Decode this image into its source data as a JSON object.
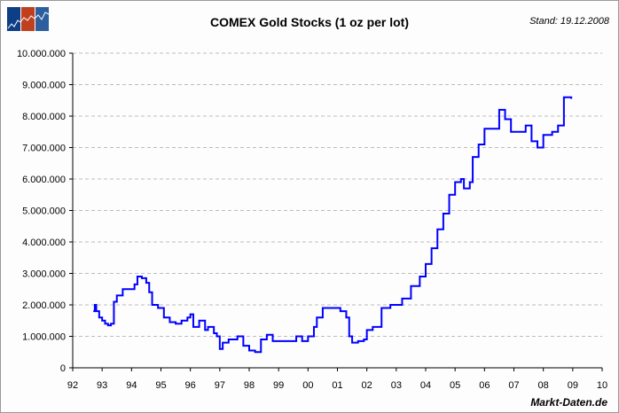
{
  "header": {
    "stand": "Stand: 19.12.2008",
    "brand": "Markt-Daten.de",
    "logo_icon": "markt-daten-logo"
  },
  "chart_data": {
    "type": "line",
    "title": "COMEX Gold Stocks (1 oz per lot)",
    "xlabel": "",
    "ylabel": "",
    "xlim": [
      1992,
      2010
    ],
    "ylim": [
      0,
      10000000
    ],
    "grid": "horizontal dashed",
    "line_color": "#0000ff",
    "x_tick_labels": [
      "92",
      "93",
      "94",
      "95",
      "96",
      "97",
      "98",
      "99",
      "00",
      "01",
      "02",
      "03",
      "04",
      "05",
      "06",
      "07",
      "08",
      "09",
      "10"
    ],
    "y_tick_labels": [
      "0",
      "1.000.000",
      "2.000.000",
      "3.000.000",
      "4.000.000",
      "5.000.000",
      "6.000.000",
      "7.000.000",
      "8.000.000",
      "9.000.000",
      "10.000.000"
    ],
    "series": [
      {
        "x": [
          1992.7,
          1992.75,
          1992.8,
          1992.9,
          1993.0,
          1993.1,
          1993.2,
          1993.3,
          1993.4,
          1993.5,
          1993.7,
          1993.9,
          1994.1,
          1994.2,
          1994.35,
          1994.5,
          1994.6,
          1994.7,
          1994.9,
          1995.1,
          1995.3,
          1995.5,
          1995.7,
          1995.9,
          1996.0,
          1996.1,
          1996.3,
          1996.5,
          1996.6,
          1996.8,
          1996.9,
          1997.0,
          1997.1,
          1997.3,
          1997.6,
          1997.8,
          1998.0,
          1998.2,
          1998.4,
          1998.6,
          1998.8,
          1999.0,
          1999.3,
          1999.6,
          1999.8,
          2000.0,
          2000.2,
          2000.3,
          2000.5,
          2000.8,
          2001.1,
          2001.3,
          2001.4,
          2001.5,
          2001.7,
          2001.9,
          2002.0,
          2002.2,
          2002.5,
          2002.8,
          2003.0,
          2003.2,
          2003.5,
          2003.8,
          2004.0,
          2004.2,
          2004.4,
          2004.6,
          2004.8,
          2005.0,
          2005.2,
          2005.3,
          2005.5,
          2005.6,
          2005.8,
          2006.0,
          2006.3,
          2006.5,
          2006.7,
          2006.9,
          2007.2,
          2007.4,
          2007.6,
          2007.8,
          2008.0,
          2008.3,
          2008.5,
          2008.7,
          2008.8,
          2008.95
        ],
        "values": [
          1800000,
          2000000,
          1800000,
          1600000,
          1500000,
          1400000,
          1350000,
          1400000,
          2100000,
          2300000,
          2500000,
          2500000,
          2650000,
          2900000,
          2850000,
          2700000,
          2400000,
          2000000,
          1900000,
          1600000,
          1450000,
          1400000,
          1500000,
          1600000,
          1700000,
          1300000,
          1500000,
          1200000,
          1300000,
          1100000,
          1000000,
          600000,
          800000,
          900000,
          1000000,
          700000,
          550000,
          500000,
          900000,
          1050000,
          850000,
          850000,
          850000,
          1000000,
          850000,
          1000000,
          1300000,
          1600000,
          1900000,
          1900000,
          1800000,
          1600000,
          1000000,
          800000,
          850000,
          900000,
          1200000,
          1300000,
          1900000,
          2000000,
          2000000,
          2200000,
          2600000,
          2900000,
          3300000,
          3800000,
          4400000,
          4900000,
          5500000,
          5900000,
          6000000,
          5700000,
          5900000,
          6700000,
          7100000,
          7600000,
          7600000,
          8200000,
          7900000,
          7500000,
          7500000,
          7700000,
          7200000,
          7000000,
          7400000,
          7500000,
          7700000,
          8600000,
          8600000,
          8550000
        ]
      }
    ]
  }
}
